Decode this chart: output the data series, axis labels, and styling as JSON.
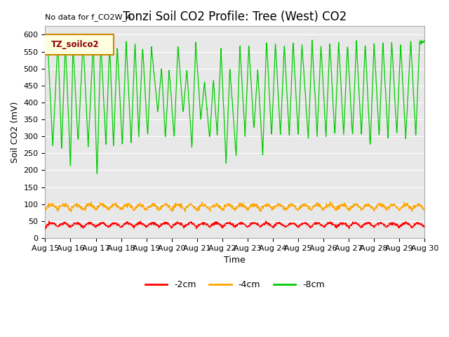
{
  "title": "Tonzi Soil CO2 Profile: Tree (West) CO2",
  "no_data_text": "No data for f_CO2W_4",
  "ylabel": "Soil CO2 (mV)",
  "xlabel": "Time",
  "legend_box_label": "TZ_soilco2",
  "xlim_days": [
    15,
    30
  ],
  "ylim": [
    0,
    625
  ],
  "yticks": [
    0,
    50,
    100,
    150,
    200,
    250,
    300,
    350,
    400,
    450,
    500,
    550,
    600
  ],
  "xtick_labels": [
    "Aug 15",
    "Aug 16",
    "Aug 17",
    "Aug 18",
    "Aug 19",
    "Aug 20",
    "Aug 21",
    "Aug 22",
    "Aug 23",
    "Aug 24",
    "Aug 25",
    "Aug 26",
    "Aug 27",
    "Aug 28",
    "Aug 29",
    "Aug 30"
  ],
  "line_colors": {
    "minus2cm": "#ff0000",
    "minus4cm": "#ffa500",
    "minus8cm": "#00cc00"
  },
  "legend_labels": [
    "-2cm",
    "-4cm",
    "-8cm"
  ],
  "background_color": "#e8e8e8",
  "fig_background": "#ffffff",
  "title_fontsize": 12,
  "axis_label_fontsize": 9,
  "tick_fontsize": 8,
  "green_peaks": [
    15.1,
    15.5,
    15.8,
    16.1,
    16.5,
    16.9,
    17.2,
    17.55,
    17.85,
    18.2,
    18.55,
    18.85,
    19.2,
    19.6,
    19.9,
    20.25,
    20.6,
    20.95,
    21.3,
    21.65,
    21.95,
    22.3,
    22.7,
    23.05,
    23.4,
    23.75,
    24.1,
    24.45,
    24.8,
    25.15,
    25.55,
    25.9,
    26.25,
    26.6,
    26.95,
    27.3,
    27.65,
    28.0,
    28.35,
    28.7,
    29.05,
    29.45,
    29.8
  ],
  "green_peak_vals": [
    577,
    585,
    580,
    570,
    583,
    575,
    578,
    572,
    568,
    582,
    580,
    565,
    565,
    502,
    497,
    570,
    498,
    575,
    460,
    470,
    560,
    502,
    568,
    570,
    498,
    585,
    575,
    570,
    582,
    575,
    580,
    568,
    575,
    578,
    574,
    582,
    575,
    578,
    580,
    582,
    576,
    580,
    578
  ],
  "green_troughs": [
    15.3,
    15.65,
    16.0,
    16.3,
    16.7,
    17.05,
    17.4,
    17.7,
    18.05,
    18.4,
    18.7,
    19.05,
    19.45,
    19.75,
    20.1,
    20.45,
    20.8,
    21.15,
    21.5,
    21.8,
    22.15,
    22.55,
    22.9,
    23.25,
    23.6,
    23.95,
    24.3,
    24.65,
    25.0,
    25.4,
    25.75,
    26.1,
    26.45,
    26.8,
    27.15,
    27.5,
    27.85,
    28.2,
    28.55,
    28.9,
    29.25,
    29.65
  ],
  "green_trough_vals": [
    270,
    260,
    210,
    280,
    270,
    180,
    275,
    270,
    270,
    275,
    300,
    300,
    370,
    295,
    295,
    370,
    265,
    350,
    290,
    300,
    220,
    240,
    300,
    320,
    240,
    300,
    300,
    300,
    300,
    290,
    300,
    300,
    300,
    300,
    295,
    300,
    265,
    300,
    295,
    300,
    295,
    300
  ]
}
